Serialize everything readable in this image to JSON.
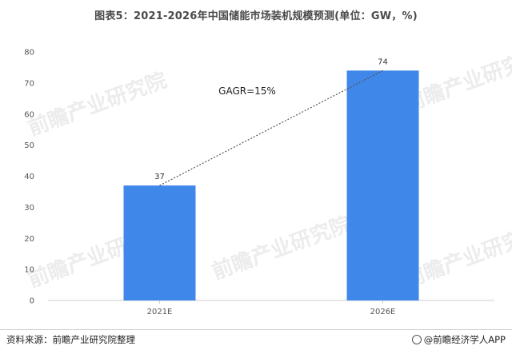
{
  "title": "图表5：2021-2026年中国储能市场装机规模预测(单位：GW，%)",
  "source": "资料来源：前瞻产业研究院整理",
  "brand": "@前瞻经济学人APP",
  "watermark_text": "前瞻产业研究院",
  "colors": {
    "bar": "#3f87e8",
    "axis": "#cccccc",
    "trend": "#555555"
  },
  "chart_data": {
    "type": "bar",
    "categories": [
      "2021E",
      "2026E"
    ],
    "values": [
      37,
      74
    ],
    "data_labels": [
      "37",
      "74"
    ],
    "ylim": [
      0,
      80
    ],
    "yticks": [
      0,
      10,
      20,
      30,
      40,
      50,
      60,
      70,
      80
    ],
    "grid": false,
    "annotation": "GAGR=15%",
    "title": "图表5：2021-2026年中国储能市场装机规模预测(单位：GW，%)",
    "xlabel": "",
    "ylabel": ""
  }
}
